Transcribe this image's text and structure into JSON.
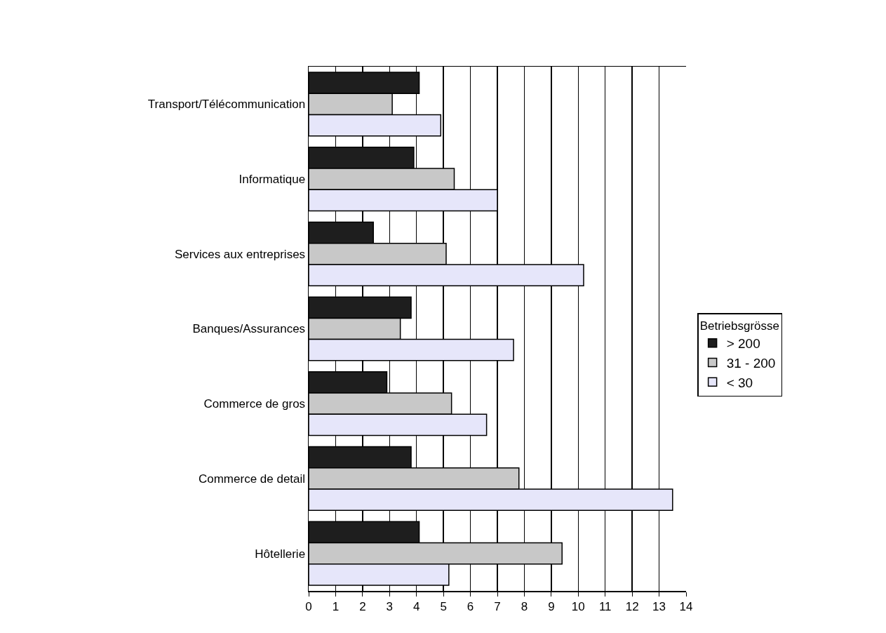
{
  "chart_data": {
    "type": "bar",
    "orientation": "horizontal",
    "legend_title": "Betriebsgrösse",
    "legend": "right",
    "grid": "x",
    "categories": [
      "Transport/Télécommunication",
      "Informatique",
      "Services aux entreprises",
      "Banques/Assurances",
      "Commerce de gros",
      "Commerce de detail",
      "Hôtellerie"
    ],
    "series": [
      {
        "name": "> 200",
        "color": "#1e1e1e",
        "values": [
          4.1,
          3.9,
          2.4,
          3.8,
          2.9,
          3.8,
          4.1
        ]
      },
      {
        "name": "31 - 200",
        "color": "#c8c8c8",
        "values": [
          3.1,
          5.4,
          5.1,
          3.4,
          5.3,
          7.8,
          9.4
        ]
      },
      {
        "name": "< 30",
        "color": "#e6e6fa",
        "values": [
          4.9,
          7.0,
          10.2,
          7.6,
          6.6,
          13.5,
          5.2
        ]
      }
    ],
    "xlim": [
      0,
      14
    ],
    "xticks": [
      0,
      1,
      2,
      3,
      4,
      5,
      6,
      7,
      8,
      9,
      10,
      11,
      12,
      13,
      14
    ]
  }
}
